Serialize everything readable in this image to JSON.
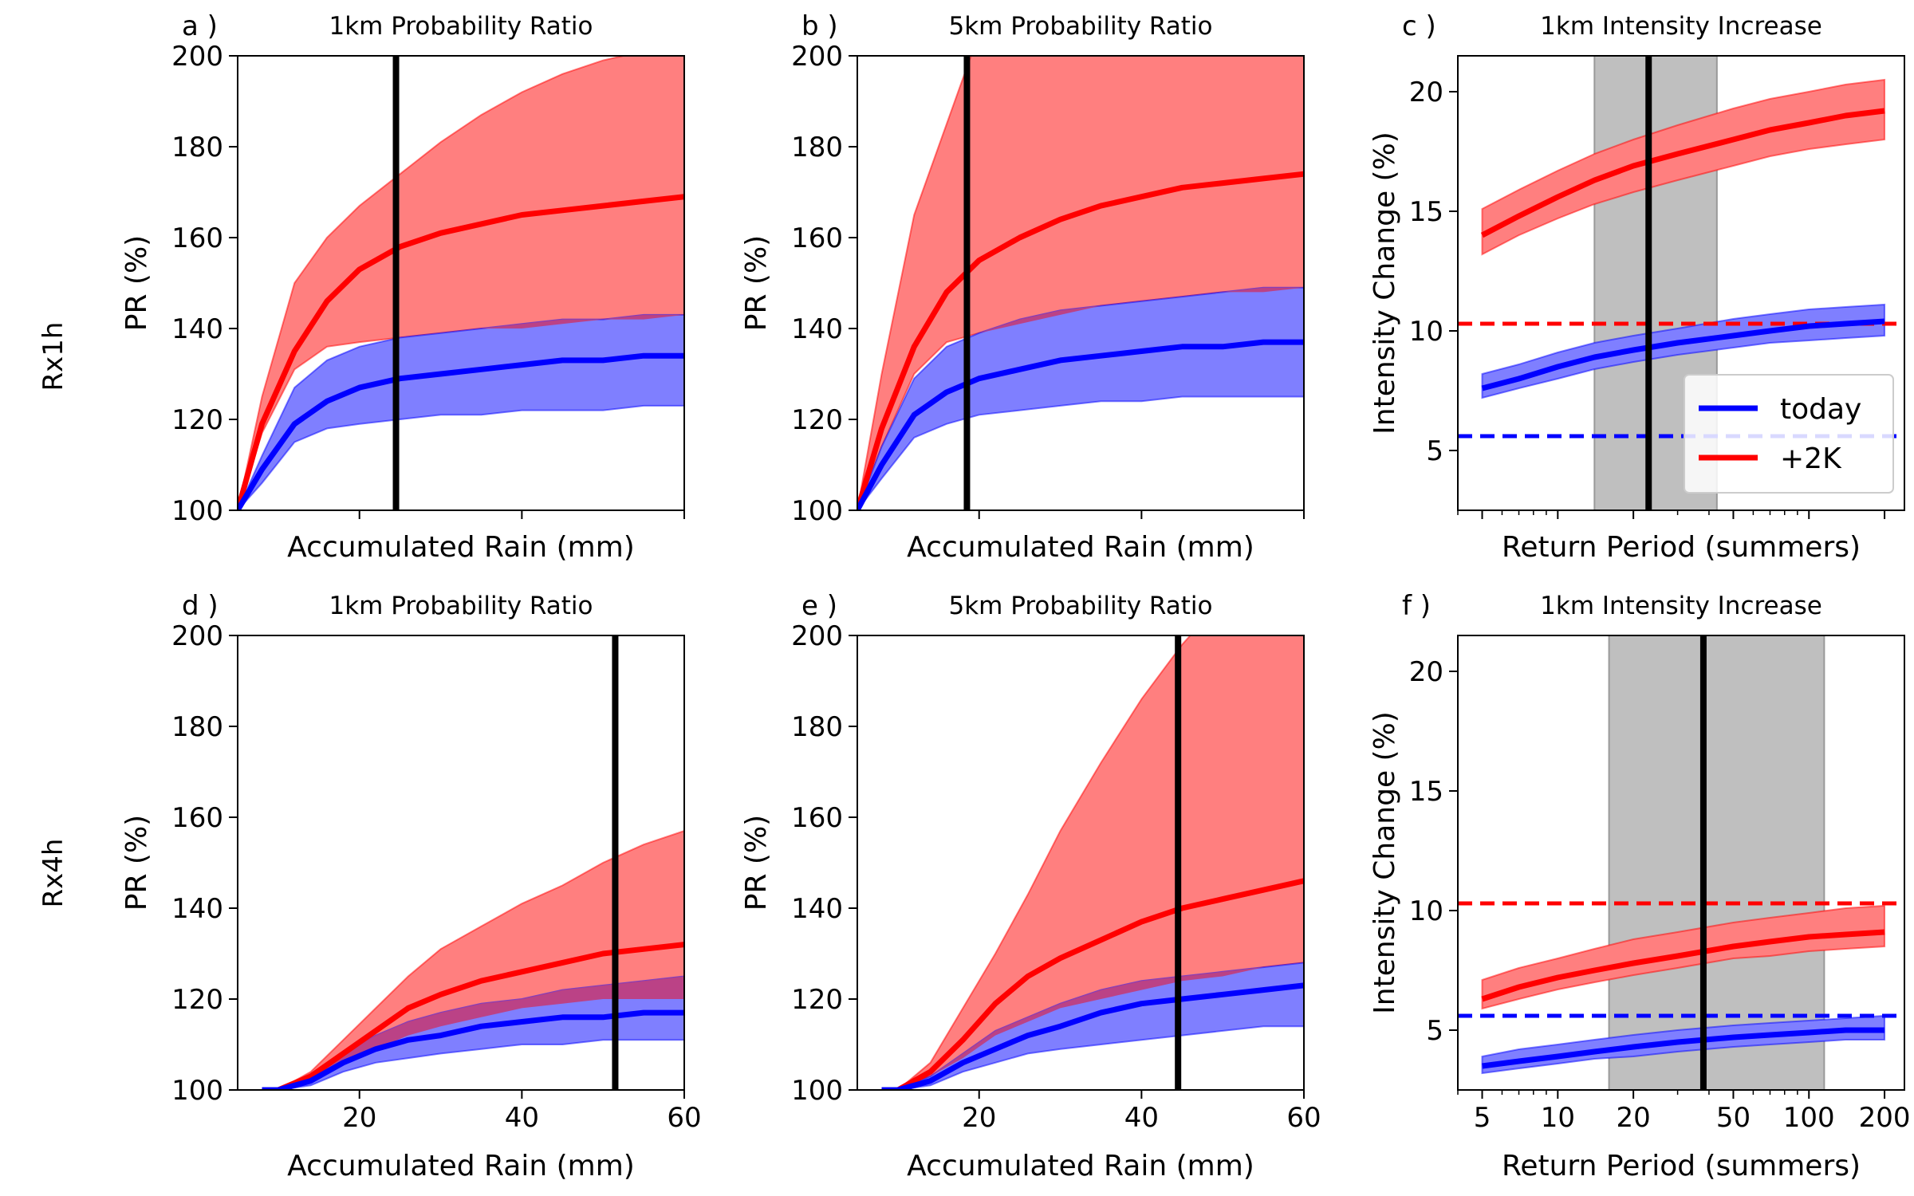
{
  "figure": {
    "row_labels": [
      "Rx1h",
      "Rx4h"
    ],
    "colors": {
      "today": "#0000ff",
      "plus2k": "#ff0000",
      "today_band": "#7f7fff",
      "plus2k_band": "#ff7f7f",
      "overlap_band": "#bf3f7f",
      "gray_band": "#bfbfbf",
      "vline": "#000000"
    }
  },
  "chart_data": [
    {
      "id": "a",
      "type": "line",
      "panel_label": "a )",
      "title": "1km Probability Ratio",
      "xlabel": "Accumulated Rain (mm)",
      "ylabel": "PR (%)",
      "xlim": [
        5,
        60
      ],
      "ylim": [
        100,
        200
      ],
      "xticks": [
        20,
        40,
        60
      ],
      "xtick_labels": [
        "",
        "",
        ""
      ],
      "yticks": [
        100,
        120,
        140,
        160,
        180,
        200
      ],
      "vline_x": 24.5,
      "series": [
        {
          "key": "plus2k",
          "x": [
            5,
            8,
            12,
            16,
            20,
            25,
            30,
            35,
            40,
            45,
            50,
            55,
            60
          ],
          "y": [
            100,
            119,
            135,
            146,
            153,
            158,
            161,
            163,
            165,
            166,
            167,
            168,
            169
          ],
          "lower": [
            100,
            117,
            131,
            136,
            137,
            138,
            139,
            140,
            140,
            141,
            142,
            142,
            143
          ],
          "upper": [
            100,
            125,
            150,
            160,
            167,
            174,
            181,
            187,
            192,
            196,
            199,
            201,
            203
          ]
        },
        {
          "key": "today",
          "x": [
            5,
            8,
            12,
            16,
            20,
            25,
            30,
            35,
            40,
            45,
            50,
            55,
            60
          ],
          "y": [
            100,
            109,
            119,
            124,
            127,
            129,
            130,
            131,
            132,
            133,
            133,
            134,
            134
          ],
          "lower": [
            100,
            106,
            115,
            118,
            119,
            120,
            121,
            121,
            122,
            122,
            122,
            123,
            123
          ],
          "upper": [
            100,
            112,
            127,
            133,
            136,
            138,
            139,
            140,
            141,
            142,
            142,
            143,
            143
          ]
        }
      ]
    },
    {
      "id": "b",
      "type": "line",
      "panel_label": "b )",
      "title": "5km Probability Ratio",
      "xlabel": "Accumulated Rain (mm)",
      "ylabel": "PR (%)",
      "xlim": [
        5,
        60
      ],
      "ylim": [
        100,
        200
      ],
      "xticks": [
        20,
        40,
        60
      ],
      "xtick_labels": [
        "",
        "",
        ""
      ],
      "yticks": [
        100,
        120,
        140,
        160,
        180,
        200
      ],
      "vline_x": 18.5,
      "series": [
        {
          "key": "plus2k",
          "x": [
            5,
            8,
            12,
            16,
            20,
            25,
            30,
            35,
            40,
            45,
            50,
            55,
            60
          ],
          "y": [
            100,
            118,
            136,
            148,
            155,
            160,
            164,
            167,
            169,
            171,
            172,
            173,
            174
          ],
          "lower": [
            100,
            114,
            130,
            137,
            139,
            141,
            143,
            145,
            146,
            147,
            148,
            148,
            149
          ],
          "upper": [
            100,
            130,
            165,
            185,
            205,
            215,
            220,
            225,
            228,
            230,
            232,
            234,
            236
          ]
        },
        {
          "key": "today",
          "x": [
            5,
            8,
            12,
            16,
            20,
            25,
            30,
            35,
            40,
            45,
            50,
            55,
            60
          ],
          "y": [
            100,
            110,
            121,
            126,
            129,
            131,
            133,
            134,
            135,
            136,
            136,
            137,
            137
          ],
          "lower": [
            100,
            107,
            116,
            119,
            121,
            122,
            123,
            124,
            124,
            125,
            125,
            125,
            125
          ],
          "upper": [
            100,
            114,
            129,
            136,
            139,
            142,
            144,
            145,
            146,
            147,
            148,
            149,
            149
          ]
        }
      ]
    },
    {
      "id": "c",
      "type": "line",
      "panel_label": "c )",
      "title": "1km Intensity Increase",
      "xlabel": "Return Period (summers)",
      "ylabel": "Intensity Change (%)",
      "xscale": "log",
      "xlim": [
        4,
        240
      ],
      "ylim": [
        2.5,
        21.5
      ],
      "xticks": [
        5,
        10,
        20,
        50,
        100,
        200
      ],
      "xtick_labels": [
        "",
        "",
        "",
        "",
        "",
        ""
      ],
      "yticks": [
        5,
        10,
        15,
        20
      ],
      "vline_x": 23,
      "gray_band": [
        14,
        43
      ],
      "hlines": [
        {
          "key": "plus2k",
          "y": 10.3
        },
        {
          "key": "today",
          "y": 5.6
        }
      ],
      "legend": {
        "position": "lower-right",
        "entries": [
          {
            "key": "today",
            "label": "today"
          },
          {
            "key": "plus2k",
            "label": "+2K"
          }
        ]
      },
      "series": [
        {
          "key": "plus2k",
          "x": [
            5,
            7,
            10,
            14,
            20,
            30,
            50,
            70,
            100,
            140,
            200
          ],
          "y": [
            14.0,
            14.8,
            15.6,
            16.3,
            16.9,
            17.4,
            18.0,
            18.4,
            18.7,
            19.0,
            19.2
          ],
          "lower": [
            13.2,
            14.0,
            14.7,
            15.3,
            15.8,
            16.3,
            16.9,
            17.3,
            17.6,
            17.8,
            18.0
          ],
          "upper": [
            15.1,
            15.9,
            16.7,
            17.4,
            18.0,
            18.6,
            19.3,
            19.7,
            20.0,
            20.3,
            20.5
          ]
        },
        {
          "key": "today",
          "x": [
            5,
            7,
            10,
            14,
            20,
            30,
            50,
            70,
            100,
            140,
            200
          ],
          "y": [
            7.6,
            8.0,
            8.5,
            8.9,
            9.2,
            9.5,
            9.8,
            10.0,
            10.2,
            10.3,
            10.4
          ],
          "lower": [
            7.2,
            7.6,
            8.0,
            8.4,
            8.7,
            9.0,
            9.3,
            9.5,
            9.6,
            9.7,
            9.8
          ],
          "upper": [
            8.2,
            8.6,
            9.1,
            9.5,
            9.8,
            10.1,
            10.5,
            10.7,
            10.9,
            11.0,
            11.1
          ]
        }
      ]
    },
    {
      "id": "d",
      "type": "line",
      "panel_label": "d )",
      "title": "1km Probability Ratio",
      "xlabel": "Accumulated Rain (mm)",
      "ylabel": "PR (%)",
      "xlim": [
        5,
        60
      ],
      "ylim": [
        100,
        200
      ],
      "xticks": [
        20,
        40,
        60
      ],
      "xtick_labels": [
        "20",
        "40",
        "60"
      ],
      "yticks": [
        100,
        120,
        140,
        160,
        180,
        200
      ],
      "vline_x": 51.5,
      "series": [
        {
          "key": "plus2k",
          "x": [
            8,
            10,
            14,
            18,
            22,
            26,
            30,
            35,
            40,
            45,
            50,
            55,
            60
          ],
          "y": [
            100,
            100,
            103,
            108,
            113,
            118,
            121,
            124,
            126,
            128,
            130,
            131,
            132
          ],
          "lower": [
            100,
            100,
            102,
            106,
            109,
            112,
            114,
            116,
            118,
            119,
            120,
            120,
            120
          ],
          "upper": [
            100,
            100,
            104,
            111,
            118,
            125,
            131,
            136,
            141,
            145,
            150,
            154,
            157
          ]
        },
        {
          "key": "today",
          "x": [
            8,
            10,
            14,
            18,
            22,
            26,
            30,
            35,
            40,
            45,
            50,
            55,
            60
          ],
          "y": [
            100,
            100,
            102,
            106,
            109,
            111,
            112,
            114,
            115,
            116,
            116,
            117,
            117
          ],
          "lower": [
            100,
            100,
            101,
            104,
            106,
            107,
            108,
            109,
            110,
            110,
            111,
            111,
            111
          ],
          "upper": [
            100,
            100,
            103,
            108,
            112,
            115,
            117,
            119,
            120,
            122,
            123,
            124,
            125
          ]
        }
      ]
    },
    {
      "id": "e",
      "type": "line",
      "panel_label": "e )",
      "title": "5km Probability Ratio",
      "xlabel": "Accumulated Rain (mm)",
      "ylabel": "PR (%)",
      "xlim": [
        5,
        60
      ],
      "ylim": [
        100,
        200
      ],
      "xticks": [
        20,
        40,
        60
      ],
      "xtick_labels": [
        "20",
        "40",
        "60"
      ],
      "yticks": [
        100,
        120,
        140,
        160,
        180,
        200
      ],
      "vline_x": 44.5,
      "series": [
        {
          "key": "plus2k",
          "x": [
            8,
            10,
            14,
            18,
            22,
            26,
            30,
            35,
            40,
            45,
            50,
            55,
            60
          ],
          "y": [
            100,
            100,
            104,
            111,
            119,
            125,
            129,
            133,
            137,
            140,
            142,
            144,
            146
          ],
          "lower": [
            100,
            100,
            103,
            107,
            112,
            115,
            118,
            120,
            122,
            124,
            125,
            127,
            128
          ],
          "upper": [
            100,
            100,
            106,
            118,
            130,
            143,
            157,
            172,
            186,
            198,
            208,
            216,
            222
          ]
        },
        {
          "key": "today",
          "x": [
            8,
            10,
            14,
            18,
            22,
            26,
            30,
            35,
            40,
            45,
            50,
            55,
            60
          ],
          "y": [
            100,
            100,
            102,
            106,
            109,
            112,
            114,
            117,
            119,
            120,
            121,
            122,
            123
          ],
          "lower": [
            100,
            100,
            101,
            104,
            106,
            108,
            109,
            110,
            111,
            112,
            113,
            114,
            114
          ],
          "upper": [
            100,
            100,
            103,
            108,
            113,
            116,
            119,
            122,
            124,
            125,
            126,
            127,
            128
          ]
        }
      ]
    },
    {
      "id": "f",
      "type": "line",
      "panel_label": "f )",
      "title": "1km Intensity Increase",
      "xlabel": "Return Period (summers)",
      "ylabel": "Intensity Change (%)",
      "xscale": "log",
      "xlim": [
        4,
        240
      ],
      "ylim": [
        2.5,
        21.5
      ],
      "xticks": [
        5,
        10,
        20,
        50,
        100,
        200
      ],
      "xtick_labels": [
        "5",
        "10",
        "20",
        "50",
        "100",
        "200"
      ],
      "yticks": [
        5,
        10,
        15,
        20
      ],
      "vline_x": 38,
      "gray_band": [
        16,
        115
      ],
      "hlines": [
        {
          "key": "plus2k",
          "y": 10.3
        },
        {
          "key": "today",
          "y": 5.6
        }
      ],
      "series": [
        {
          "key": "plus2k",
          "x": [
            5,
            7,
            10,
            14,
            20,
            30,
            50,
            70,
            100,
            140,
            200
          ],
          "y": [
            6.3,
            6.8,
            7.2,
            7.5,
            7.8,
            8.1,
            8.5,
            8.7,
            8.9,
            9.0,
            9.1
          ],
          "lower": [
            5.9,
            6.3,
            6.7,
            7.0,
            7.3,
            7.6,
            8.0,
            8.1,
            8.3,
            8.4,
            8.5
          ],
          "upper": [
            7.1,
            7.6,
            8.0,
            8.4,
            8.8,
            9.1,
            9.5,
            9.7,
            9.9,
            10.1,
            10.2
          ]
        },
        {
          "key": "today",
          "x": [
            5,
            7,
            10,
            14,
            20,
            30,
            50,
            70,
            100,
            140,
            200
          ],
          "y": [
            3.5,
            3.7,
            3.9,
            4.1,
            4.3,
            4.5,
            4.7,
            4.8,
            4.9,
            5.0,
            5.0
          ],
          "lower": [
            3.2,
            3.4,
            3.6,
            3.8,
            3.9,
            4.1,
            4.3,
            4.4,
            4.5,
            4.6,
            4.6
          ],
          "upper": [
            3.9,
            4.2,
            4.4,
            4.6,
            4.8,
            5.0,
            5.2,
            5.3,
            5.4,
            5.5,
            5.6
          ]
        }
      ]
    }
  ]
}
